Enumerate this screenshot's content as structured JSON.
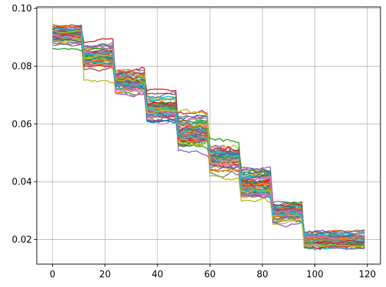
{
  "chart_data": {
    "type": "line",
    "title": "",
    "xlabel": "",
    "ylabel": "",
    "xlim": [
      -6,
      125
    ],
    "ylim": [
      0.0115,
      0.1005
    ],
    "grid": true,
    "legend": "none",
    "x_ticks": [
      0,
      20,
      40,
      60,
      80,
      100,
      120
    ],
    "y_ticks": [
      0.02,
      0.04,
      0.06,
      0.08,
      0.1
    ],
    "x_tick_labels": [
      "0",
      "20",
      "40",
      "60",
      "80",
      "100",
      "120"
    ],
    "y_tick_labels": [
      "0.02",
      "0.04",
      "0.06",
      "0.08",
      "0.10"
    ],
    "x": [
      0,
      1,
      2,
      3,
      4,
      5,
      6,
      7,
      8,
      9,
      10,
      11,
      12,
      13,
      14,
      15,
      16,
      17,
      18,
      19,
      20,
      21,
      22,
      23,
      24,
      25,
      26,
      27,
      28,
      29,
      30,
      31,
      32,
      33,
      34,
      35,
      36,
      37,
      38,
      39,
      40,
      41,
      42,
      43,
      44,
      45,
      46,
      47,
      48,
      49,
      50,
      51,
      52,
      53,
      54,
      55,
      56,
      57,
      58,
      59,
      60,
      61,
      62,
      63,
      64,
      65,
      66,
      67,
      68,
      69,
      70,
      71,
      72,
      73,
      74,
      75,
      76,
      77,
      78,
      79,
      80,
      81,
      82,
      83,
      84,
      85,
      86,
      87,
      88,
      89,
      90,
      91,
      92,
      93,
      94,
      95,
      96,
      97,
      98,
      99,
      100,
      101,
      102,
      103,
      104,
      105,
      106,
      107,
      108,
      109,
      110,
      111,
      112,
      113,
      114,
      115,
      116,
      117,
      118,
      119
    ],
    "segments": [
      {
        "x_start": 0,
        "x_end": 11,
        "center": 0.0905,
        "spread": 0.0035
      },
      {
        "x_start": 12,
        "x_end": 23,
        "center": 0.0835,
        "spread": 0.0045
      },
      {
        "x_start": 24,
        "x_end": 35,
        "center": 0.0745,
        "spread": 0.005
      },
      {
        "x_start": 36,
        "x_end": 47,
        "center": 0.065,
        "spread": 0.005
      },
      {
        "x_start": 48,
        "x_end": 59,
        "center": 0.057,
        "spread": 0.006
      },
      {
        "x_start": 60,
        "x_end": 71,
        "center": 0.048,
        "spread": 0.006
      },
      {
        "x_start": 72,
        "x_end": 83,
        "center": 0.039,
        "spread": 0.0055
      },
      {
        "x_start": 84,
        "x_end": 95,
        "center": 0.0295,
        "spread": 0.004
      },
      {
        "x_start": 96,
        "x_end": 119,
        "center": 0.0195,
        "spread": 0.0035
      }
    ],
    "series_count": 60,
    "series_colors": [
      "#1f77b4",
      "#ff7f0e",
      "#2ca02c",
      "#d62728",
      "#9467bd",
      "#8c564b",
      "#e377c2",
      "#7f7f7f",
      "#bcbd22",
      "#17becf"
    ]
  }
}
